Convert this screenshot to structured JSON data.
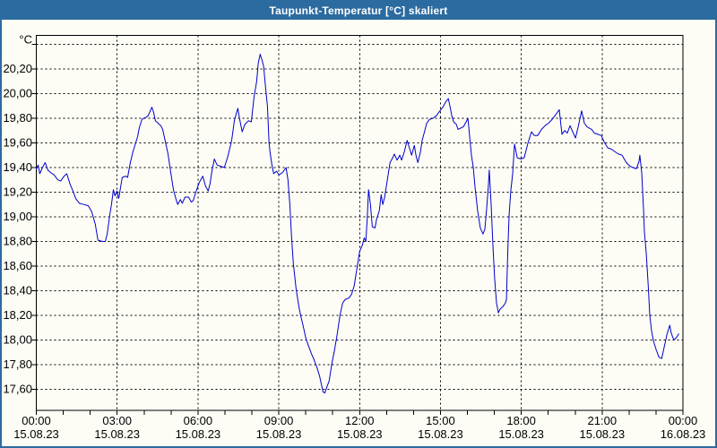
{
  "window": {
    "title": "Taupunkt-Temperatur [°C] skaliert"
  },
  "colors": {
    "titlebar_background": "#2c6ba0",
    "titlebar_text": "#ffffff",
    "window_border": "#2c6ba0",
    "content_background": "#fdfdf6",
    "plot_border": "#000000",
    "gridline": "#000000",
    "axis_text": "#000000",
    "series_line": "#0000cc"
  },
  "chart_data": {
    "type": "line",
    "title": "Taupunkt-Temperatur [°C] skaliert",
    "unit_label": "°C",
    "grid": {
      "horizontal": "dashed",
      "vertical": "dashed every 3 hours",
      "minor_x_ticks_every_hours": 1
    },
    "x_axis": {
      "range_hours": [
        0,
        24
      ],
      "major_ticks": [
        {
          "hour": 0,
          "time": "00:00",
          "date": "15.08.23"
        },
        {
          "hour": 3,
          "time": "03:00",
          "date": "15.08.23"
        },
        {
          "hour": 6,
          "time": "06:00",
          "date": "15.08.23"
        },
        {
          "hour": 9,
          "time": "09:00",
          "date": "15.08.23"
        },
        {
          "hour": 12,
          "time": "12:00",
          "date": "15.08.23"
        },
        {
          "hour": 15,
          "time": "15:00",
          "date": "15.08.23"
        },
        {
          "hour": 18,
          "time": "18:00",
          "date": "15.08.23"
        },
        {
          "hour": 21,
          "time": "21:00",
          "date": "15.08.23"
        },
        {
          "hour": 24,
          "time": "00:00",
          "date": "16.08.23"
        }
      ],
      "vertical_gridline_hours": [
        3,
        6,
        9,
        12,
        15,
        18,
        21
      ]
    },
    "y_axis": {
      "unit": "°C",
      "gridline_values": [
        20.4,
        20.2,
        20.0,
        19.8,
        19.6,
        19.4,
        19.2,
        19.0,
        18.8,
        18.6,
        18.4,
        18.2,
        18.0,
        17.8,
        17.6
      ],
      "tick_labels": [
        {
          "value": 20.2,
          "label": "20,20"
        },
        {
          "value": 20.0,
          "label": "20,00"
        },
        {
          "value": 19.8,
          "label": "19,80"
        },
        {
          "value": 19.6,
          "label": "19,60"
        },
        {
          "value": 19.4,
          "label": "19,40"
        },
        {
          "value": 19.2,
          "label": "19,20"
        },
        {
          "value": 19.0,
          "label": "19,00"
        },
        {
          "value": 18.8,
          "label": "18,80"
        },
        {
          "value": 18.6,
          "label": "18,60"
        },
        {
          "value": 18.4,
          "label": "18,40"
        },
        {
          "value": 18.2,
          "label": "18,20"
        },
        {
          "value": 18.0,
          "label": "18,00"
        },
        {
          "value": 17.8,
          "label": "17,80"
        },
        {
          "value": 17.6,
          "label": "17,60"
        }
      ]
    },
    "series": [
      {
        "name": "Taupunkt-Temperatur",
        "color": "#0000cc",
        "points_hour_value": [
          [
            0.0,
            19.39
          ],
          [
            0.07,
            19.42
          ],
          [
            0.13,
            19.35
          ],
          [
            0.23,
            19.4
          ],
          [
            0.33,
            19.44
          ],
          [
            0.43,
            19.38
          ],
          [
            0.53,
            19.36
          ],
          [
            0.66,
            19.34
          ],
          [
            0.8,
            19.3
          ],
          [
            0.9,
            19.29
          ],
          [
            1.03,
            19.33
          ],
          [
            1.13,
            19.35
          ],
          [
            1.26,
            19.26
          ],
          [
            1.36,
            19.21
          ],
          [
            1.46,
            19.15
          ],
          [
            1.6,
            19.11
          ],
          [
            1.76,
            19.1
          ],
          [
            1.93,
            19.09
          ],
          [
            2.06,
            19.04
          ],
          [
            2.19,
            18.94
          ],
          [
            2.29,
            18.81
          ],
          [
            2.46,
            18.8
          ],
          [
            2.56,
            18.8
          ],
          [
            2.63,
            18.86
          ],
          [
            2.73,
            19.02
          ],
          [
            2.79,
            19.1
          ],
          [
            2.86,
            19.22
          ],
          [
            2.92,
            19.17
          ],
          [
            2.99,
            19.21
          ],
          [
            3.06,
            19.15
          ],
          [
            3.12,
            19.23
          ],
          [
            3.19,
            19.32
          ],
          [
            3.32,
            19.33
          ],
          [
            3.39,
            19.32
          ],
          [
            3.49,
            19.44
          ],
          [
            3.59,
            19.53
          ],
          [
            3.69,
            19.6
          ],
          [
            3.76,
            19.65
          ],
          [
            3.82,
            19.72
          ],
          [
            3.92,
            19.79
          ],
          [
            3.99,
            19.8
          ],
          [
            4.09,
            19.81
          ],
          [
            4.15,
            19.82
          ],
          [
            4.29,
            19.89
          ],
          [
            4.35,
            19.85
          ],
          [
            4.42,
            19.78
          ],
          [
            4.52,
            19.76
          ],
          [
            4.62,
            19.74
          ],
          [
            4.69,
            19.71
          ],
          [
            4.79,
            19.61
          ],
          [
            4.89,
            19.51
          ],
          [
            4.99,
            19.36
          ],
          [
            5.09,
            19.22
          ],
          [
            5.19,
            19.14
          ],
          [
            5.25,
            19.1
          ],
          [
            5.35,
            19.14
          ],
          [
            5.42,
            19.11
          ],
          [
            5.52,
            19.16
          ],
          [
            5.65,
            19.16
          ],
          [
            5.75,
            19.12
          ],
          [
            5.82,
            19.13
          ],
          [
            5.92,
            19.2
          ],
          [
            6.05,
            19.28
          ],
          [
            6.18,
            19.33
          ],
          [
            6.28,
            19.25
          ],
          [
            6.38,
            19.21
          ],
          [
            6.45,
            19.27
          ],
          [
            6.51,
            19.36
          ],
          [
            6.61,
            19.47
          ],
          [
            6.71,
            19.42
          ],
          [
            6.85,
            19.41
          ],
          [
            6.98,
            19.4
          ],
          [
            7.11,
            19.49
          ],
          [
            7.25,
            19.62
          ],
          [
            7.35,
            19.78
          ],
          [
            7.45,
            19.86
          ],
          [
            7.48,
            19.88
          ],
          [
            7.54,
            19.8
          ],
          [
            7.64,
            19.69
          ],
          [
            7.74,
            19.75
          ],
          [
            7.88,
            19.78
          ],
          [
            7.98,
            19.77
          ],
          [
            8.08,
            19.97
          ],
          [
            8.18,
            20.1
          ],
          [
            8.24,
            20.25
          ],
          [
            8.31,
            20.32
          ],
          [
            8.38,
            20.27
          ],
          [
            8.44,
            20.22
          ],
          [
            8.51,
            20.05
          ],
          [
            8.58,
            19.9
          ],
          [
            8.64,
            19.6
          ],
          [
            8.68,
            19.52
          ],
          [
            8.74,
            19.43
          ],
          [
            8.81,
            19.35
          ],
          [
            8.91,
            19.37
          ],
          [
            9.01,
            19.34
          ],
          [
            9.14,
            19.36
          ],
          [
            9.27,
            19.4
          ],
          [
            9.34,
            19.3
          ],
          [
            9.41,
            19.1
          ],
          [
            9.47,
            18.85
          ],
          [
            9.54,
            18.62
          ],
          [
            9.64,
            18.42
          ],
          [
            9.74,
            18.28
          ],
          [
            9.81,
            18.2
          ],
          [
            9.91,
            18.11
          ],
          [
            10.01,
            18.01
          ],
          [
            10.11,
            17.95
          ],
          [
            10.21,
            17.89
          ],
          [
            10.31,
            17.84
          ],
          [
            10.41,
            17.78
          ],
          [
            10.51,
            17.71
          ],
          [
            10.57,
            17.65
          ],
          [
            10.64,
            17.58
          ],
          [
            10.71,
            17.57
          ],
          [
            10.77,
            17.61
          ],
          [
            10.87,
            17.67
          ],
          [
            10.97,
            17.81
          ],
          [
            11.07,
            17.92
          ],
          [
            11.17,
            18.05
          ],
          [
            11.27,
            18.2
          ],
          [
            11.37,
            18.3
          ],
          [
            11.47,
            18.33
          ],
          [
            11.6,
            18.34
          ],
          [
            11.7,
            18.37
          ],
          [
            11.8,
            18.44
          ],
          [
            11.9,
            18.58
          ],
          [
            12.0,
            18.72
          ],
          [
            12.1,
            18.77
          ],
          [
            12.17,
            18.83
          ],
          [
            12.23,
            18.8
          ],
          [
            12.28,
            18.98
          ],
          [
            12.33,
            19.22
          ],
          [
            12.4,
            19.1
          ],
          [
            12.47,
            18.92
          ],
          [
            12.57,
            18.91
          ],
          [
            12.63,
            18.98
          ],
          [
            12.73,
            19.05
          ],
          [
            12.8,
            19.18
          ],
          [
            12.86,
            19.1
          ],
          [
            12.93,
            19.16
          ],
          [
            13.03,
            19.3
          ],
          [
            13.13,
            19.44
          ],
          [
            13.23,
            19.48
          ],
          [
            13.29,
            19.51
          ],
          [
            13.39,
            19.46
          ],
          [
            13.49,
            19.5
          ],
          [
            13.56,
            19.46
          ],
          [
            13.66,
            19.53
          ],
          [
            13.76,
            19.62
          ],
          [
            13.86,
            19.55
          ],
          [
            13.93,
            19.5
          ],
          [
            14.03,
            19.58
          ],
          [
            14.09,
            19.5
          ],
          [
            14.16,
            19.44
          ],
          [
            14.26,
            19.53
          ],
          [
            14.32,
            19.62
          ],
          [
            14.42,
            19.7
          ],
          [
            14.49,
            19.76
          ],
          [
            14.59,
            19.79
          ],
          [
            14.72,
            19.8
          ],
          [
            14.85,
            19.82
          ],
          [
            14.95,
            19.85
          ],
          [
            15.09,
            19.89
          ],
          [
            15.19,
            19.93
          ],
          [
            15.29,
            19.96
          ],
          [
            15.35,
            19.9
          ],
          [
            15.42,
            19.82
          ],
          [
            15.49,
            19.77
          ],
          [
            15.59,
            19.75
          ],
          [
            15.65,
            19.71
          ],
          [
            15.75,
            19.72
          ],
          [
            15.85,
            19.73
          ],
          [
            15.95,
            19.77
          ],
          [
            16.02,
            19.8
          ],
          [
            16.08,
            19.66
          ],
          [
            16.15,
            19.5
          ],
          [
            16.22,
            19.4
          ],
          [
            16.28,
            19.25
          ],
          [
            16.38,
            19.05
          ],
          [
            16.48,
            18.91
          ],
          [
            16.58,
            18.86
          ],
          [
            16.65,
            18.9
          ],
          [
            16.71,
            19.05
          ],
          [
            16.78,
            19.25
          ],
          [
            16.81,
            19.38
          ],
          [
            16.88,
            19.1
          ],
          [
            16.95,
            18.75
          ],
          [
            17.01,
            18.5
          ],
          [
            17.08,
            18.3
          ],
          [
            17.15,
            18.22
          ],
          [
            17.21,
            18.25
          ],
          [
            17.31,
            18.27
          ],
          [
            17.41,
            18.3
          ],
          [
            17.45,
            18.33
          ],
          [
            17.48,
            18.58
          ],
          [
            17.51,
            18.79
          ],
          [
            17.55,
            19.02
          ],
          [
            17.61,
            19.21
          ],
          [
            17.68,
            19.35
          ],
          [
            17.75,
            19.59
          ],
          [
            17.85,
            19.48
          ],
          [
            17.98,
            19.47
          ],
          [
            18.11,
            19.48
          ],
          [
            18.25,
            19.6
          ],
          [
            18.38,
            19.69
          ],
          [
            18.48,
            19.66
          ],
          [
            18.61,
            19.66
          ],
          [
            18.75,
            19.71
          ],
          [
            18.88,
            19.74
          ],
          [
            19.01,
            19.76
          ],
          [
            19.14,
            19.79
          ],
          [
            19.28,
            19.83
          ],
          [
            19.41,
            19.87
          ],
          [
            19.51,
            19.67
          ],
          [
            19.61,
            19.7
          ],
          [
            19.71,
            19.68
          ],
          [
            19.81,
            19.74
          ],
          [
            19.91,
            19.69
          ],
          [
            20.01,
            19.64
          ],
          [
            20.11,
            19.73
          ],
          [
            20.24,
            19.86
          ],
          [
            20.34,
            19.76
          ],
          [
            20.44,
            19.73
          ],
          [
            20.61,
            19.71
          ],
          [
            20.71,
            19.68
          ],
          [
            20.84,
            19.67
          ],
          [
            20.97,
            19.66
          ],
          [
            21.07,
            19.61
          ],
          [
            21.21,
            19.56
          ],
          [
            21.34,
            19.55
          ],
          [
            21.47,
            19.53
          ],
          [
            21.6,
            19.51
          ],
          [
            21.74,
            19.5
          ],
          [
            21.87,
            19.45
          ],
          [
            21.94,
            19.43
          ],
          [
            22.04,
            19.41
          ],
          [
            22.14,
            19.4
          ],
          [
            22.27,
            19.39
          ],
          [
            22.37,
            19.45
          ],
          [
            22.4,
            19.5
          ],
          [
            22.47,
            19.36
          ],
          [
            22.54,
            19.05
          ],
          [
            22.57,
            18.88
          ],
          [
            22.64,
            18.7
          ],
          [
            22.71,
            18.45
          ],
          [
            22.77,
            18.2
          ],
          [
            22.84,
            18.07
          ],
          [
            22.91,
            17.99
          ],
          [
            23.01,
            17.92
          ],
          [
            23.11,
            17.86
          ],
          [
            23.21,
            17.85
          ],
          [
            23.31,
            17.95
          ],
          [
            23.41,
            18.05
          ],
          [
            23.51,
            18.12
          ],
          [
            23.56,
            18.06
          ],
          [
            23.66,
            18.0
          ],
          [
            23.76,
            18.02
          ],
          [
            23.84,
            18.05
          ]
        ]
      }
    ]
  }
}
